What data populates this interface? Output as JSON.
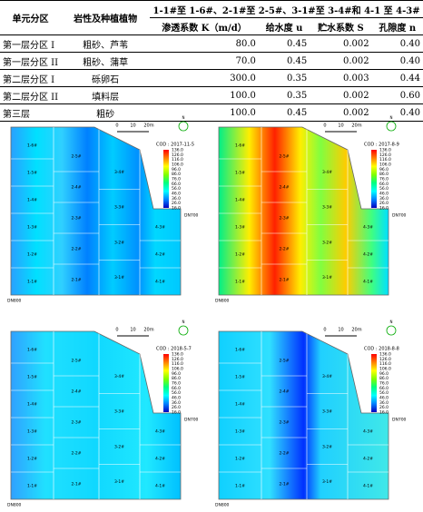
{
  "table": {
    "header": {
      "col0": "单元分区",
      "col1": "岩性及种植植物",
      "group": "1-1#至 1-6#、2-1#至 2-5#、3-1#至 3-4#和 4-1 至 4-3#",
      "sub": [
        "渗透系数 K（m/d）",
        "给水度 u",
        "贮水系数 S",
        "孔隙度 n"
      ]
    },
    "rows": [
      [
        "第一层分区 I",
        "粗砂、芦苇",
        "80.0",
        "0.45",
        "0.002",
        "0.40"
      ],
      [
        "第一层分区 II",
        "粗砂、蒲草",
        "70.0",
        "0.45",
        "0.002",
        "0.40"
      ],
      [
        "第二层分区 I",
        "砾卵石",
        "300.0",
        "0.35",
        "0.003",
        "0.44"
      ],
      [
        "第二层分区 II",
        "填料层",
        "100.0",
        "0.35",
        "0.002",
        "0.60"
      ],
      [
        "第三层",
        "粗砂",
        "100.0",
        "0.45",
        "0.002",
        "0.40"
      ]
    ]
  },
  "maps": {
    "scale": [
      "0",
      "10",
      "20m"
    ],
    "north": "N",
    "outlet": "DN700",
    "inlet": "DN800",
    "legend_ticks": [
      "136.0",
      "126.0",
      "116.0",
      "106.0",
      "96.0",
      "86.0",
      "76.0",
      "66.0",
      "56.0",
      "46.0",
      "36.0",
      "26.0",
      "16.0"
    ],
    "cell_labels": [
      [
        "1-6#",
        "1-5#",
        "1-4#",
        "1-3#",
        "1-2#",
        "1-1#"
      ],
      [
        "2-5#",
        "2-4#",
        "2-3#",
        "2-2#",
        "2-1#"
      ],
      [
        "3-4#",
        "3-3#",
        "3-2#",
        "3-1#"
      ],
      [
        "4-3#",
        "4-2#",
        "4-1#"
      ]
    ],
    "panels": [
      {
        "label": "COD : 2017-11-5"
      },
      {
        "label": "COD : 2017-8-9"
      },
      {
        "label": "COD : 2018-5-7"
      },
      {
        "label": "COD : 2018-8-8"
      }
    ]
  }
}
